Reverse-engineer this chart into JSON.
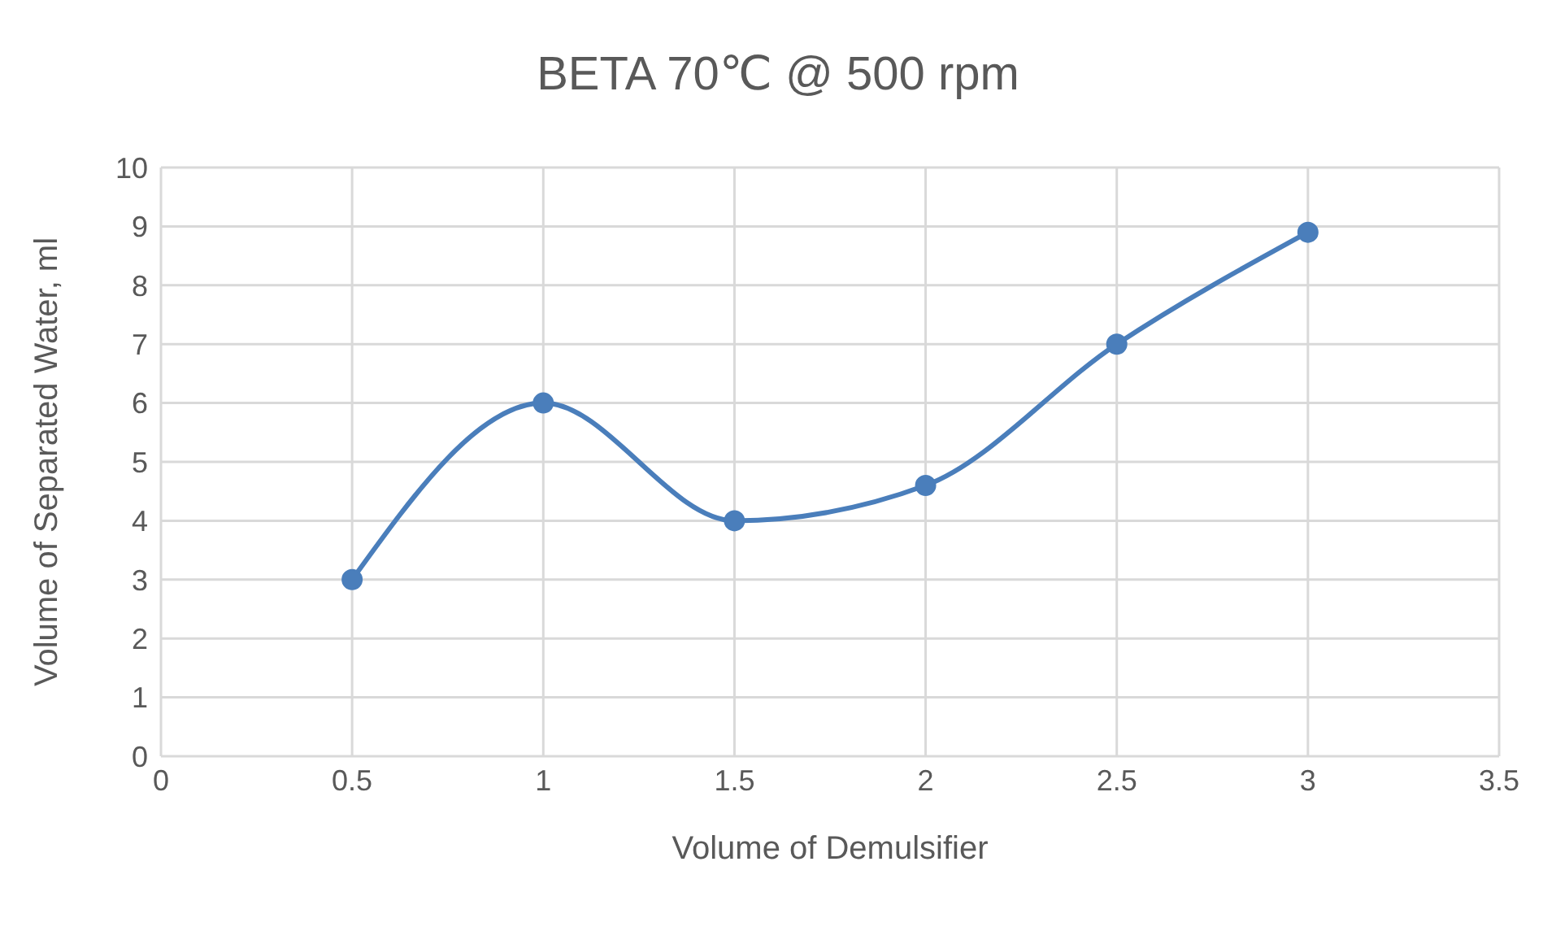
{
  "chart_data": {
    "type": "line",
    "title": "BETA 70℃ @ 500 rpm",
    "xlabel": "Volume of Demulsifier",
    "ylabel": "Volume of Separated Water, ml",
    "x": [
      0.5,
      1,
      1.5,
      2,
      2.5,
      3
    ],
    "series": [
      {
        "color": "#4a7ebb",
        "values": [
          3,
          6,
          4,
          4.6,
          7,
          8.9
        ]
      }
    ],
    "xlim": [
      0,
      3.5
    ],
    "xticks": [
      0,
      0.5,
      1,
      1.5,
      2,
      2.5,
      3,
      3.5
    ],
    "ylim": [
      0,
      10
    ],
    "yticks": [
      0,
      1,
      2,
      3,
      4,
      5,
      6,
      7,
      8,
      9,
      10
    ],
    "grid": true,
    "marker": "circle",
    "line_style": "solid"
  }
}
